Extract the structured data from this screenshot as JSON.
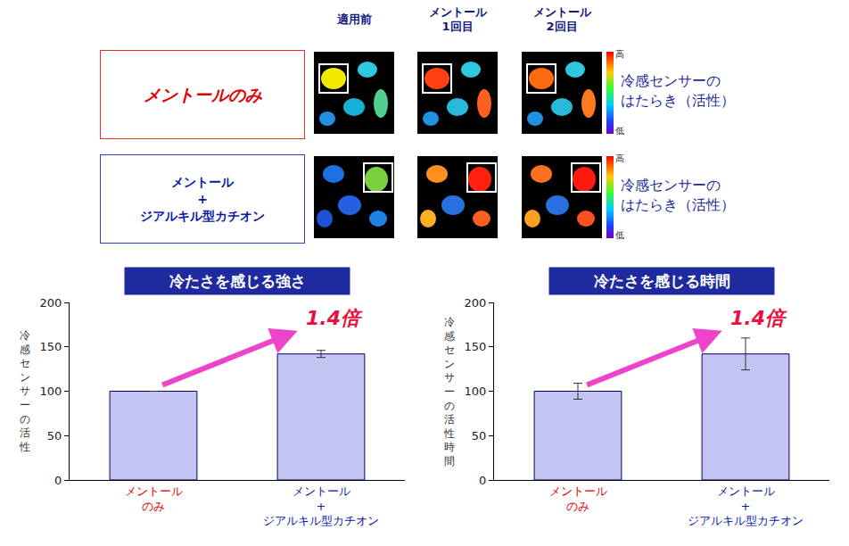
{
  "image_panel": {
    "columns": [
      "適用前",
      "メントール\n1回目",
      "メントール\n2回目"
    ],
    "rows": [
      {
        "label": "メントールのみ",
        "scale_title": "冷感センサーの\nはたらき（活性）"
      },
      {
        "label": "メントール\n+\nジアルキル型カチオン",
        "scale_title": "冷感センサーの\nはたらき（活性）"
      }
    ],
    "scale_high": "高",
    "scale_low": "低"
  },
  "chart_data": [
    {
      "type": "bar",
      "title": "冷たさを感じる強さ",
      "y_label": "冷感センサーの活性",
      "categories": [
        "メントール\nのみ",
        "メントール\n+\nジアルキル型カチオン"
      ],
      "values": [
        100,
        142
      ],
      "errors": [
        0,
        4
      ],
      "color": "#c4c4f2",
      "ylim": [
        0,
        200
      ],
      "yticks": [
        0,
        50,
        100,
        150,
        200
      ],
      "grid": false,
      "annotations": [
        {
          "text": "1.4倍"
        }
      ]
    },
    {
      "type": "bar",
      "title": "冷たさを感じる時間",
      "y_label": "冷感センサーの活性時間",
      "categories": [
        "メントール\nのみ",
        "メントール\n+\nジアルキル型カチオン"
      ],
      "values": [
        100,
        142
      ],
      "errors": [
        9,
        18
      ],
      "color": "#c4c4f2",
      "ylim": [
        0,
        200
      ],
      "yticks": [
        0,
        50,
        100,
        150,
        200
      ],
      "grid": false,
      "annotations": [
        {
          "text": "1.4倍"
        }
      ]
    }
  ]
}
